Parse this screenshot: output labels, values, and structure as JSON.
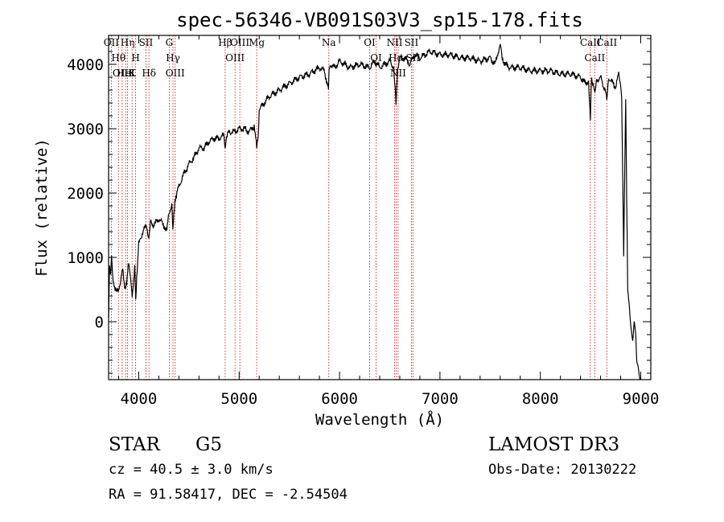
{
  "chart_data": {
    "type": "line",
    "title": "spec-56346-VB091S03V3_sp15-178.fits",
    "xlabel": "Wavelength (Å)",
    "ylabel": "Flux (relative)",
    "xlim": [
      3700,
      9100
    ],
    "ylim": [
      -900,
      4450
    ],
    "xticks": [
      4000,
      5000,
      6000,
      7000,
      8000,
      9000
    ],
    "xtick_labels": [
      "4000",
      "5000",
      "6000",
      "7000",
      "8000",
      "9000"
    ],
    "yticks": [
      0,
      1000,
      2000,
      3000,
      4000
    ],
    "ytick_labels": [
      "0",
      "1000",
      "2000",
      "3000",
      "4000"
    ],
    "series": [
      {
        "name": "flux",
        "x": [
          3700,
          3710,
          3720,
          3730,
          3740,
          3760,
          3780,
          3800,
          3820,
          3840,
          3860,
          3880,
          3900,
          3920,
          3935,
          3950,
          3960,
          3970,
          3980,
          4000,
          4020,
          4040,
          4060,
          4080,
          4101,
          4120,
          4150,
          4200,
          4250,
          4280,
          4300,
          4330,
          4340,
          4360,
          4400,
          4450,
          4500,
          4550,
          4600,
          4650,
          4700,
          4750,
          4800,
          4850,
          4861,
          4870,
          4900,
          4950,
          5000,
          5050,
          5100,
          5150,
          5175,
          5190,
          5200,
          5300,
          5400,
          5500,
          5600,
          5700,
          5800,
          5850,
          5890,
          5896,
          5910,
          5950,
          6000,
          6100,
          6200,
          6300,
          6350,
          6400,
          6450,
          6500,
          6540,
          6563,
          6580,
          6600,
          6650,
          6700,
          6750,
          6800,
          6900,
          7000,
          7100,
          7200,
          7300,
          7400,
          7500,
          7550,
          7580,
          7600,
          7620,
          7650,
          7700,
          7800,
          7900,
          8000,
          8100,
          8200,
          8300,
          8400,
          8450,
          8480,
          8498,
          8510,
          8542,
          8560,
          8600,
          8620,
          8662,
          8680,
          8700,
          8750,
          8780,
          8800,
          8810,
          8830,
          8850,
          8870,
          8900,
          8920,
          8935,
          8950,
          8960,
          8975,
          8990,
          9000
        ],
        "y": [
          100,
          900,
          700,
          1000,
          700,
          550,
          450,
          500,
          650,
          800,
          550,
          600,
          900,
          700,
          400,
          600,
          850,
          350,
          700,
          1200,
          1300,
          1400,
          1450,
          1500,
          1250,
          1550,
          1500,
          1600,
          1500,
          1400,
          1700,
          1800,
          1400,
          1900,
          2100,
          2300,
          2450,
          2550,
          2700,
          2700,
          2800,
          2850,
          2850,
          2900,
          2700,
          2850,
          2950,
          2950,
          3000,
          3000,
          2950,
          3050,
          2700,
          2900,
          3300,
          3500,
          3600,
          3700,
          3800,
          3850,
          3950,
          3900,
          3600,
          3950,
          4000,
          3950,
          4050,
          3950,
          4000,
          3950,
          4050,
          3950,
          4000,
          4050,
          3950,
          3400,
          3950,
          4100,
          4100,
          4000,
          4150,
          4100,
          4200,
          4150,
          4150,
          4100,
          4100,
          4050,
          4100,
          4000,
          4200,
          4300,
          4100,
          4000,
          3950,
          3950,
          3900,
          3900,
          3900,
          3850,
          3850,
          3800,
          3700,
          3750,
          3150,
          3800,
          3550,
          3750,
          3800,
          3700,
          3500,
          3800,
          3750,
          3650,
          3850,
          3700,
          3500,
          1000,
          3500,
          500,
          -50,
          -300,
          0,
          -200,
          -600,
          -700,
          -900,
          -900
        ]
      }
    ],
    "spectral_lines": [
      {
        "label": "OII",
        "wavelength": 3727
      },
      {
        "label": "Hθ",
        "wavelength": 3798
      },
      {
        "label": "OIII",
        "wavelength": 3835
      },
      {
        "label": "HeI",
        "wavelength": 3870
      },
      {
        "label": "Hη",
        "wavelength": 3889
      },
      {
        "label": "K",
        "wavelength": 3934
      },
      {
        "label": "H",
        "wavelength": 3969
      },
      {
        "label": "SII",
        "wavelength": 4072
      },
      {
        "label": "Hδ",
        "wavelength": 4102
      },
      {
        "label": "G",
        "wavelength": 4304
      },
      {
        "label": "Hγ",
        "wavelength": 4341
      },
      {
        "label": "OIII",
        "wavelength": 4363
      },
      {
        "label": "Hβ",
        "wavelength": 4861
      },
      {
        "label": "OIII",
        "wavelength": 4959
      },
      {
        "label": "OIII",
        "wavelength": 5007
      },
      {
        "label": "Mg",
        "wavelength": 5175
      },
      {
        "label": "Na",
        "wavelength": 5893
      },
      {
        "label": "OI",
        "wavelength": 6300
      },
      {
        "label": "OI",
        "wavelength": 6364
      },
      {
        "label": "NII",
        "wavelength": 6548
      },
      {
        "label": "Hα",
        "wavelength": 6563
      },
      {
        "label": "NII",
        "wavelength": 6583
      },
      {
        "label": "SII",
        "wavelength": 6716
      },
      {
        "label": "SII",
        "wavelength": 6731
      },
      {
        "label": "CaII",
        "wavelength": 8498
      },
      {
        "label": "CaII",
        "wavelength": 8542
      },
      {
        "label": "CaII",
        "wavelength": 8662
      }
    ],
    "line_color": "#cc0000",
    "spectrum_color": "#000000"
  },
  "info": {
    "object_type": "STAR",
    "subclass": "G5",
    "survey": "LAMOST DR3",
    "redshift": "cz = 40.5 ± 3.0 km/s",
    "obs_date": "Obs-Date: 20130222",
    "coords": "RA =  91.58417, DEC =  -2.54504"
  }
}
